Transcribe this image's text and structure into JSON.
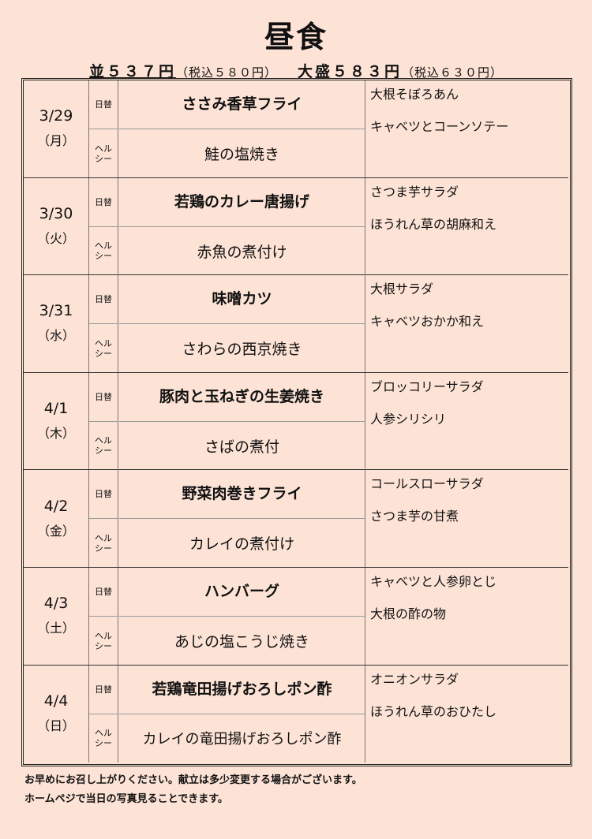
{
  "title": "昼食",
  "prices": {
    "regular": "並５３７円",
    "regular_tax": "（税込５８０円）",
    "large": "大盛５８３円",
    "large_tax": "（税込６３０円）"
  },
  "labels": {
    "daily": "日替",
    "healthy": "ヘル\nシー"
  },
  "days": [
    {
      "date": "3/29",
      "weekday": "（月）",
      "daily": "ささみ香草フライ",
      "healthy": "鮭の塩焼き",
      "sides": [
        "大根そぼろあん",
        "キャベツとコーンソテー"
      ]
    },
    {
      "date": "3/30",
      "weekday": "（火）",
      "daily": "若鶏のカレー唐揚げ",
      "healthy": "赤魚の煮付け",
      "sides": [
        "さつま芋サラダ",
        "ほうれん草の胡麻和え"
      ]
    },
    {
      "date": "3/31",
      "weekday": "（水）",
      "daily": "味噌カツ",
      "healthy": "さわらの西京焼き",
      "sides": [
        "大根サラダ",
        "キャベツおかか和え"
      ]
    },
    {
      "date": "4/1",
      "weekday": "（木）",
      "daily": "豚肉と玉ねぎの生姜焼き",
      "healthy": "さばの煮付",
      "sides": [
        "ブロッコリーサラダ",
        "人参シリシリ"
      ]
    },
    {
      "date": "4/2",
      "weekday": "（金）",
      "daily": "野菜肉巻きフライ",
      "healthy": "カレイの煮付け",
      "sides": [
        "コールスローサラダ",
        "さつま芋の甘煮"
      ]
    },
    {
      "date": "4/3",
      "weekday": "（土）",
      "daily": "ハンバーグ",
      "healthy": "あじの塩こうじ焼き",
      "sides": [
        "キャベツと人参卵とじ",
        "大根の酢の物"
      ]
    },
    {
      "date": "4/4",
      "weekday": "（日）",
      "daily": "若鶏竜田揚げおろしポン酢",
      "healthy": "カレイの竜田揚げおろしポン酢",
      "sides": [
        "オニオンサラダ",
        "ほうれん草のおひたし"
      ]
    }
  ],
  "notes": [
    "お早めにお召し上がりください。献立は多少変更する場合がございます。",
    "ホームペジで当日の写真見ることできます。"
  ]
}
